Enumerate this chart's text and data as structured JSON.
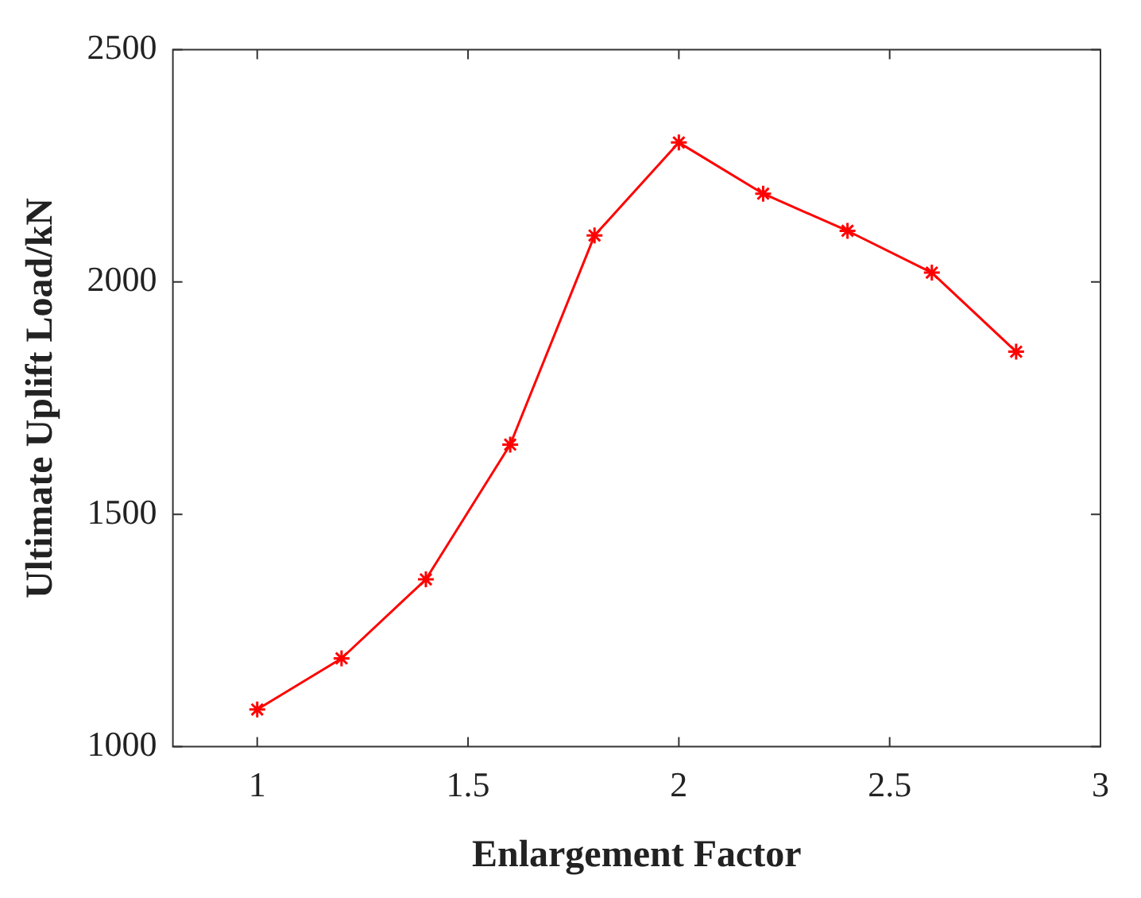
{
  "chart_data": {
    "type": "line",
    "xlabel": "Enlargement Factor",
    "ylabel": "Ultimate Uplift Load/kN",
    "x": [
      1,
      1.2,
      1.4,
      1.6,
      1.8,
      2,
      2.2,
      2.4,
      2.6,
      2.8
    ],
    "series": [
      {
        "color": "#ff0000",
        "values": [
          1080,
          1190,
          1360,
          1650,
          2100,
          2300,
          2190,
          2110,
          2020,
          1850
        ]
      }
    ],
    "xlim": [
      0.8,
      3
    ],
    "xticks": [
      1,
      1.5,
      2,
      2.5,
      3
    ],
    "ylim": [
      1000,
      2500
    ],
    "yticks": [
      1000,
      1500,
      2000,
      2500
    ],
    "grid": false,
    "legend": false,
    "marker": "cross",
    "line_style": "solid"
  }
}
